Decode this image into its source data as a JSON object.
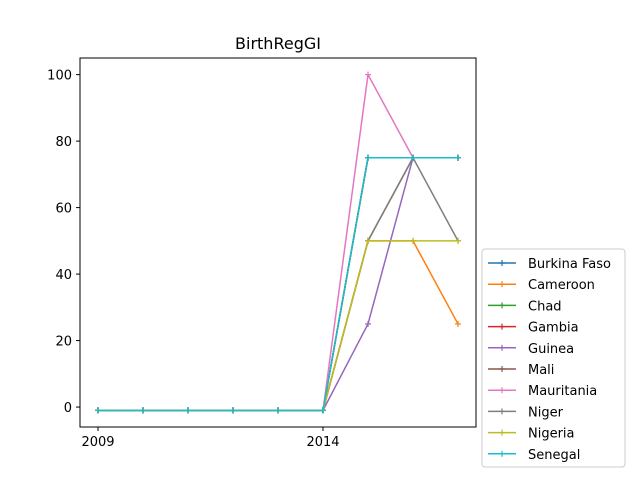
{
  "chart_data": {
    "type": "line",
    "title": "BirthRegGI",
    "xlabel": "",
    "ylabel": "",
    "x": [
      2009,
      2010,
      2011,
      2012,
      2013,
      2014,
      2015,
      2016,
      2017
    ],
    "x_tick_labels": [
      "2009",
      "2014"
    ],
    "x_ticks": [
      2009,
      2014
    ],
    "xlim": [
      2008.6,
      2017.4
    ],
    "y_ticks": [
      0,
      20,
      40,
      60,
      80,
      100
    ],
    "y_tick_labels": [
      "0",
      "20",
      "40",
      "60",
      "80",
      "100"
    ],
    "ylim": [
      -6,
      105
    ],
    "grid": false,
    "legend_position": "lower-right-outside",
    "series": [
      {
        "name": "Burkina Faso",
        "color": "#1f77b4",
        "values": [
          -1,
          -1,
          -1,
          -1,
          -1,
          -1,
          75,
          75,
          75
        ]
      },
      {
        "name": "Cameroon",
        "color": "#ff7f0e",
        "values": [
          -1,
          -1,
          -1,
          -1,
          -1,
          -1,
          50,
          50,
          25
        ]
      },
      {
        "name": "Chad",
        "color": "#2ca02c",
        "values": [
          -1,
          -1,
          -1,
          -1,
          -1,
          -1,
          75,
          75,
          75
        ]
      },
      {
        "name": "Gambia",
        "color": "#d62728",
        "values": [
          -1,
          -1,
          -1,
          -1,
          -1,
          -1,
          75,
          75,
          75
        ]
      },
      {
        "name": "Guinea",
        "color": "#9467bd",
        "values": [
          -1,
          -1,
          -1,
          -1,
          -1,
          -1,
          25,
          75,
          75
        ]
      },
      {
        "name": "Mali",
        "color": "#8c564b",
        "values": [
          -1,
          -1,
          -1,
          -1,
          -1,
          -1,
          50,
          75,
          75
        ]
      },
      {
        "name": "Mauritania",
        "color": "#e377c2",
        "values": [
          -1,
          -1,
          -1,
          -1,
          -1,
          -1,
          100,
          75,
          75
        ]
      },
      {
        "name": "Niger",
        "color": "#7f7f7f",
        "values": [
          -1,
          -1,
          -1,
          -1,
          -1,
          -1,
          50,
          75,
          50
        ]
      },
      {
        "name": "Nigeria",
        "color": "#bcbd22",
        "values": [
          -1,
          -1,
          -1,
          -1,
          -1,
          -1,
          50,
          50,
          50
        ]
      },
      {
        "name": "Senegal",
        "color": "#17becf",
        "values": [
          -1,
          -1,
          -1,
          -1,
          -1,
          -1,
          75,
          75,
          75
        ]
      }
    ]
  }
}
